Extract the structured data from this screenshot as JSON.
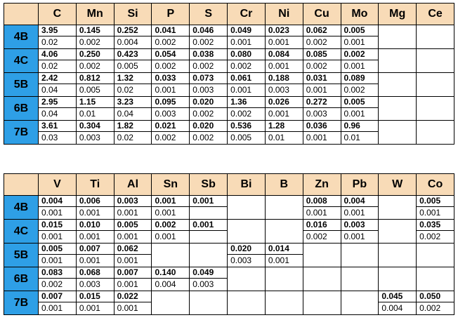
{
  "table1": {
    "columns": [
      "C",
      "Mn",
      "Si",
      "P",
      "S",
      "Cr",
      "Ni",
      "Cu",
      "Mo",
      "Mg",
      "Ce"
    ],
    "rows": [
      {
        "label": "4B",
        "cells": [
          [
            "3.95",
            "0.02"
          ],
          [
            "0.145",
            "0.002"
          ],
          [
            "0.252",
            "0.004"
          ],
          [
            "0.041",
            "0.002"
          ],
          [
            "0.046",
            "0.002"
          ],
          [
            "0.049",
            "0.001"
          ],
          [
            "0.023",
            "0.001"
          ],
          [
            "0.062",
            "0.002"
          ],
          [
            "0.005",
            "0.001"
          ],
          null,
          null
        ]
      },
      {
        "label": "4C",
        "cells": [
          [
            "4.06",
            "0.02"
          ],
          [
            "0.250",
            "0.002"
          ],
          [
            "0.423",
            "0.005"
          ],
          [
            "0.054",
            "0.002"
          ],
          [
            "0.038",
            "0.002"
          ],
          [
            "0.080",
            "0.002"
          ],
          [
            "0.084",
            "0.001"
          ],
          [
            "0.085",
            "0.002"
          ],
          [
            "0.002",
            "0.001"
          ],
          null,
          null
        ]
      },
      {
        "label": "5B",
        "cells": [
          [
            "2.42",
            "0.04"
          ],
          [
            "0.812",
            "0.005"
          ],
          [
            "1.32",
            "0.02"
          ],
          [
            "0.033",
            "0.001"
          ],
          [
            "0.073",
            "0.003"
          ],
          [
            "0.061",
            "0.001"
          ],
          [
            "0.188",
            "0.003"
          ],
          [
            "0.031",
            "0.001"
          ],
          [
            "0.089",
            "0.002"
          ],
          null,
          null
        ]
      },
      {
        "label": "6B",
        "cells": [
          [
            "2.95",
            "0.04"
          ],
          [
            "1.15",
            "0.01"
          ],
          [
            "3.23",
            "0.04"
          ],
          [
            "0.095",
            "0.003"
          ],
          [
            "0.020",
            "0.002"
          ],
          [
            "1.36",
            "0.002"
          ],
          [
            "0.026",
            "0.001"
          ],
          [
            "0.272",
            "0.003"
          ],
          [
            "0.005",
            "0.001"
          ],
          null,
          null
        ]
      },
      {
        "label": "7B",
        "cells": [
          [
            "3.61",
            "0.03"
          ],
          [
            "0.304",
            "0.003"
          ],
          [
            "1.82",
            "0.02"
          ],
          [
            "0.021",
            "0.002"
          ],
          [
            "0.020",
            "0.002"
          ],
          [
            "0.536",
            "0.005"
          ],
          [
            "1.28",
            "0.01"
          ],
          [
            "0.036",
            "0.001"
          ],
          [
            "0.96",
            "0.01"
          ],
          null,
          null
        ]
      }
    ]
  },
  "table2": {
    "columns": [
      "V",
      "Ti",
      "Al",
      "Sn",
      "Sb",
      "Bi",
      "B",
      "Zn",
      "Pb",
      "W",
      "Co"
    ],
    "rows": [
      {
        "label": "4B",
        "cells": [
          [
            "0.004",
            "0.001"
          ],
          [
            "0.006",
            "0.001"
          ],
          [
            "0.003",
            "0.001"
          ],
          [
            "0.001",
            "0.001"
          ],
          [
            "0.001",
            ""
          ],
          null,
          null,
          [
            "0.008",
            "0.001"
          ],
          [
            "0.004",
            "0.001"
          ],
          null,
          [
            "0.005",
            "0.001"
          ]
        ]
      },
      {
        "label": "4C",
        "cells": [
          [
            "0.015",
            "0.001"
          ],
          [
            "0.010",
            "0.001"
          ],
          [
            "0.005",
            "0.001"
          ],
          [
            "0.002",
            "0.001"
          ],
          [
            "0.001",
            ""
          ],
          null,
          null,
          [
            "0.016",
            "0.002"
          ],
          [
            "0.003",
            "0.001"
          ],
          null,
          [
            "0.035",
            "0.002"
          ]
        ]
      },
      {
        "label": "5B",
        "cells": [
          [
            "0.005",
            "0.001"
          ],
          [
            "0.007",
            "0.001"
          ],
          [
            "0.062",
            "0.001"
          ],
          null,
          null,
          [
            "0.020",
            "0.003"
          ],
          [
            "0.014",
            "0.001"
          ],
          null,
          null,
          null,
          null
        ]
      },
      {
        "label": "6B",
        "cells": [
          [
            "0.083",
            "0.002"
          ],
          [
            "0.068",
            "0.003"
          ],
          [
            "0.007",
            "0.001"
          ],
          [
            "0.140",
            "0.004"
          ],
          [
            "0.049",
            "0.003"
          ],
          null,
          null,
          null,
          null,
          null,
          null
        ]
      },
      {
        "label": "7B",
        "cells": [
          [
            "0.007",
            "0.001"
          ],
          [
            "0.015",
            "0.001"
          ],
          [
            "0.022",
            "0.001"
          ],
          null,
          null,
          null,
          null,
          null,
          null,
          [
            "0.045",
            "0.004"
          ],
          [
            "0.050",
            "0.002"
          ]
        ]
      }
    ]
  },
  "colors": {
    "header_bg": "#f8dbb7",
    "rowhead_bg": "#2e9fe6"
  }
}
